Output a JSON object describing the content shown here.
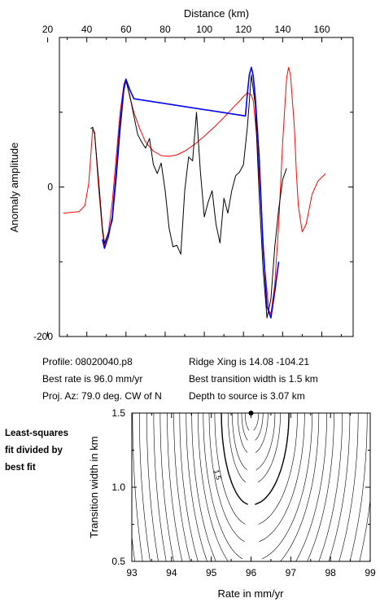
{
  "chart_data": [
    {
      "type": "line",
      "title": "",
      "xlabel": "Distance (km)",
      "ylabel": "Anomaly amplitude",
      "xlim": [
        20,
        170
      ],
      "ylim": [
        -200,
        200
      ],
      "xticks": [
        "20",
        "40",
        "60",
        "80",
        "100",
        "120",
        "140",
        "160"
      ],
      "yticks": [
        "0",
        "-200"
      ],
      "grid": false,
      "series": [
        {
          "color": "#ff0000",
          "x": [
            28,
            36,
            39,
            41,
            43,
            44,
            46,
            48,
            49,
            51,
            53,
            55,
            57,
            59,
            60,
            62,
            64,
            67,
            70,
            74,
            78,
            82,
            86,
            90,
            95,
            100,
            105,
            110,
            115,
            118,
            120,
            122,
            124,
            125,
            127,
            129,
            131,
            133,
            134,
            136,
            138,
            140,
            142,
            143,
            144,
            146,
            147,
            148,
            150,
            152,
            155,
            158,
            162
          ],
          "values": [
            -35,
            -33,
            -25,
            5,
            78,
            73,
            0,
            -60,
            -78,
            -60,
            -20,
            40,
            100,
            138,
            145,
            120,
            100,
            78,
            60,
            48,
            42,
            41,
            43,
            48,
            57,
            68,
            80,
            93,
            107,
            115,
            121,
            126,
            123,
            115,
            60,
            -30,
            -112,
            -165,
            -170,
            -130,
            -50,
            60,
            145,
            160,
            150,
            80,
            20,
            -25,
            -60,
            -50,
            -10,
            8,
            18
          ]
        },
        {
          "color": "#000000",
          "x": [
            42,
            43,
            44,
            46,
            48,
            49,
            50,
            51,
            53,
            55,
            57,
            59,
            60,
            62,
            64,
            66,
            68,
            70,
            72,
            74,
            76,
            78,
            80,
            82,
            84,
            86,
            88,
            90,
            92,
            94,
            96,
            98,
            100,
            102,
            104,
            106,
            108,
            110,
            112,
            114,
            116,
            118,
            120,
            122,
            124,
            126,
            128,
            130,
            132,
            134,
            136,
            138,
            140,
            142
          ],
          "values": [
            78,
            80,
            70,
            10,
            -55,
            -75,
            -68,
            -62,
            -45,
            10,
            75,
            130,
            142,
            122,
            95,
            70,
            60,
            52,
            65,
            30,
            18,
            32,
            -5,
            -55,
            -80,
            -78,
            -90,
            -5,
            40,
            35,
            100,
            20,
            -40,
            -20,
            -5,
            -50,
            -75,
            -15,
            -35,
            -5,
            15,
            20,
            30,
            80,
            150,
            110,
            -10,
            -110,
            -175,
            -150,
            -80,
            -30,
            10,
            25
          ]
        },
        {
          "color": "#0000ff",
          "x": [
            48,
            49,
            51,
            53,
            55,
            57,
            59,
            60,
            62,
            64,
            121,
            122,
            123,
            124,
            125,
            126,
            128,
            130,
            132,
            134,
            136,
            138
          ],
          "values": [
            -70,
            -82,
            -66,
            -40,
            20,
            85,
            135,
            144,
            130,
            118,
            95,
            125,
            150,
            160,
            148,
            120,
            40,
            -80,
            -160,
            -175,
            -140,
            -100
          ]
        }
      ]
    },
    {
      "type": "contour",
      "title": "",
      "xlabel": "Rate in mm/yr",
      "ylabel": "Transition width in km",
      "xlim": [
        93,
        99
      ],
      "ylim": [
        0.5,
        1.5
      ],
      "xticks": [
        "93",
        "94",
        "95",
        "96",
        "97",
        "98",
        "99"
      ],
      "yticks": [
        "0.5",
        "1.0",
        "1.5"
      ],
      "grid": false,
      "best_fit": {
        "x": 96.0,
        "y": 1.5
      },
      "contour_labels": [
        {
          "text": "1.5",
          "x": 95.1,
          "y": 1.08
        }
      ],
      "levels": [
        1.02,
        1.05,
        1.1,
        1.2,
        1.3,
        1.5,
        1.75,
        2.0,
        2.3,
        2.6,
        3.0,
        3.4,
        3.9,
        4.4,
        5.0,
        5.7,
        6.4,
        7.2,
        8.1,
        9.0,
        10.0,
        11.2,
        12.5,
        14.0
      ]
    }
  ],
  "info": {
    "profile": "Profile: 08020040.p8",
    "best_rate": "Best rate is 96.0 mm/yr",
    "proj_az": "Proj. Az: 79.0 deg. CW of N",
    "ridge_xing": "Ridge Xing is 14.08 -104.21",
    "best_transition": "Best transition width is 1.5 km",
    "depth": "Depth to source is   3.07 km"
  },
  "side_note": {
    "line1": "Least-squares",
    "line2": "fit divided by",
    "line3": "best fit"
  }
}
